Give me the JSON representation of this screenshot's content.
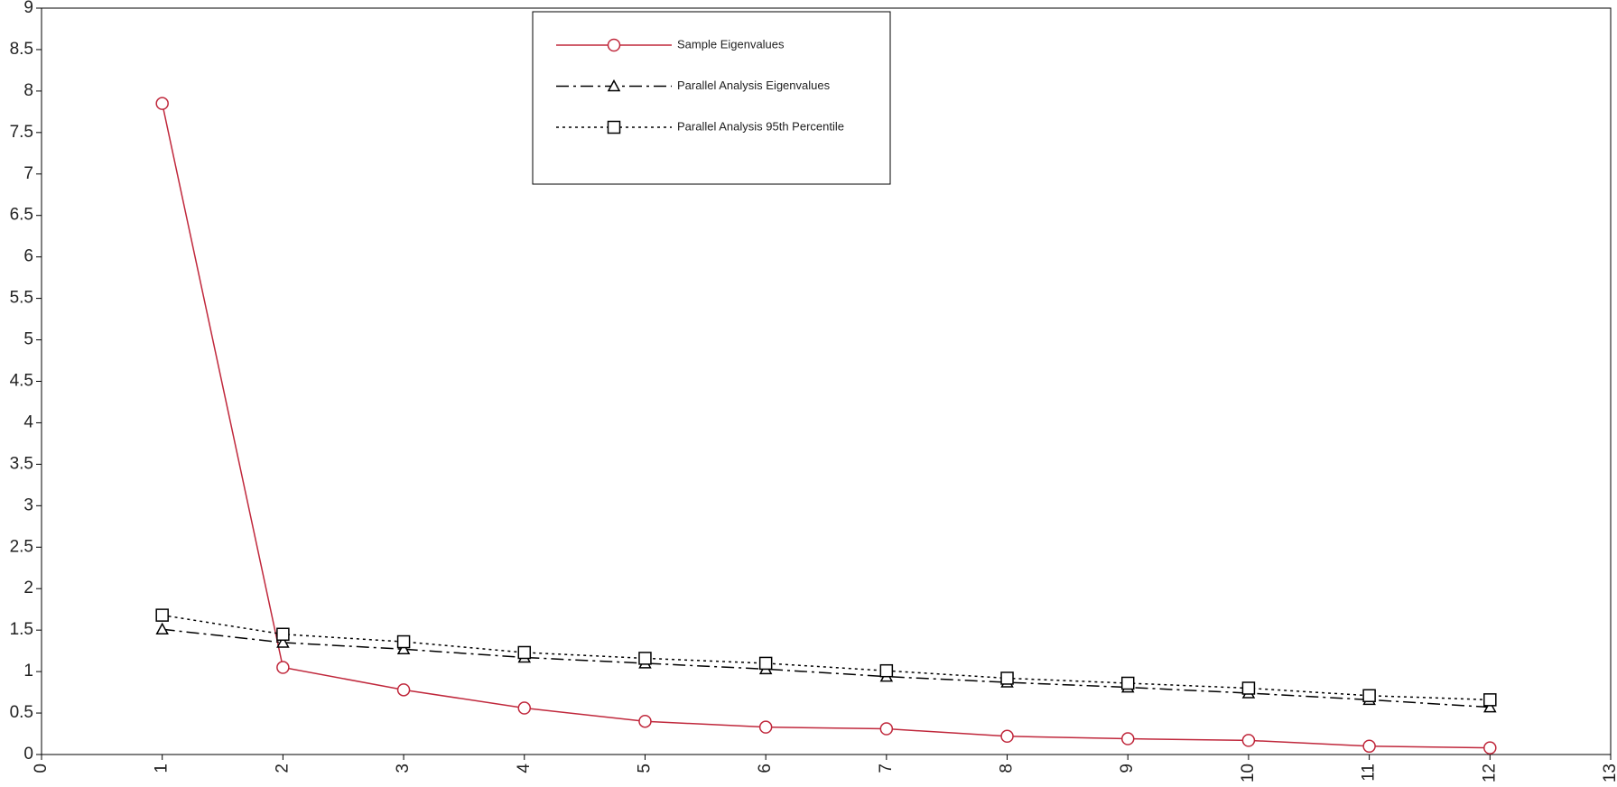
{
  "chart_data": {
    "type": "line",
    "x": [
      1,
      2,
      3,
      4,
      5,
      6,
      7,
      8,
      9,
      10,
      11,
      12
    ],
    "series": [
      {
        "name": "Sample Eigenvalues",
        "color": "#c0283c",
        "dash": "solid",
        "marker": "circle",
        "values": [
          7.85,
          1.05,
          0.78,
          0.56,
          0.4,
          0.33,
          0.31,
          0.22,
          0.19,
          0.17,
          0.1,
          0.08
        ]
      },
      {
        "name": "Parallel Analysis Eigenvalues",
        "color": "#000000",
        "dash": "dashdot",
        "marker": "triangle",
        "values": [
          1.51,
          1.35,
          1.27,
          1.17,
          1.1,
          1.03,
          0.94,
          0.87,
          0.81,
          0.74,
          0.66,
          0.57
        ]
      },
      {
        "name": "Parallel Analysis 95th Percentile",
        "color": "#000000",
        "dash": "dotted",
        "marker": "square",
        "values": [
          1.68,
          1.45,
          1.36,
          1.23,
          1.16,
          1.1,
          1.01,
          0.92,
          0.86,
          0.8,
          0.71,
          0.66
        ]
      }
    ],
    "xlim": [
      0,
      13
    ],
    "xticks": [
      0,
      1,
      2,
      3,
      4,
      5,
      6,
      7,
      8,
      9,
      10,
      11,
      12,
      13
    ],
    "ylim": [
      0,
      9
    ],
    "yticks": [
      0,
      0.5,
      1,
      1.5,
      2,
      2.5,
      3,
      3.5,
      4,
      4.5,
      5,
      5.5,
      6,
      6.5,
      7,
      7.5,
      8,
      8.5,
      9
    ],
    "grid": false,
    "legend": "top-center"
  }
}
